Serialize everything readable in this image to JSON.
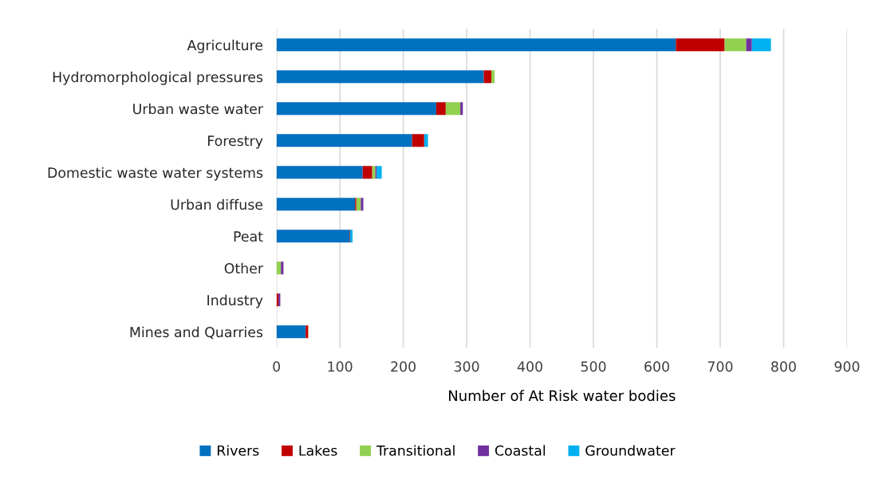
{
  "chart_data": {
    "type": "bar",
    "orientation": "horizontal",
    "stacked": true,
    "xlabel": "Number of At Risk water bodies",
    "categories": [
      "Agriculture",
      "Hydromorphological pressures",
      "Urban waste water",
      "Forestry",
      "Domestic waste water systems",
      "Urban diffuse",
      "Peat",
      "Other",
      "Industry",
      "Mines and Quarries"
    ],
    "series": [
      {
        "name": "Rivers",
        "color": "#0070c0",
        "values": [
          630,
          327,
          252,
          214,
          136,
          124,
          115,
          0,
          0,
          46
        ]
      },
      {
        "name": "Lakes",
        "color": "#c00000",
        "values": [
          77,
          12,
          15,
          19,
          15,
          2,
          1,
          0,
          3,
          4
        ]
      },
      {
        "name": "Transitional",
        "color": "#92d050",
        "values": [
          34,
          5,
          23,
          0,
          5,
          7,
          0,
          7,
          0,
          0
        ]
      },
      {
        "name": "Coastal",
        "color": "#7030a0",
        "values": [
          9,
          0,
          4,
          0,
          2,
          4,
          0,
          4,
          3,
          0
        ]
      },
      {
        "name": "Groundwater",
        "color": "#00b0f0",
        "values": [
          30,
          0,
          0,
          6,
          8,
          0,
          4,
          0,
          0,
          0
        ]
      }
    ],
    "xlim": [
      0,
      900
    ],
    "xticks": [
      0,
      100,
      200,
      300,
      400,
      500,
      600,
      700,
      800,
      900
    ],
    "grid": "x",
    "legend": "bottom"
  }
}
